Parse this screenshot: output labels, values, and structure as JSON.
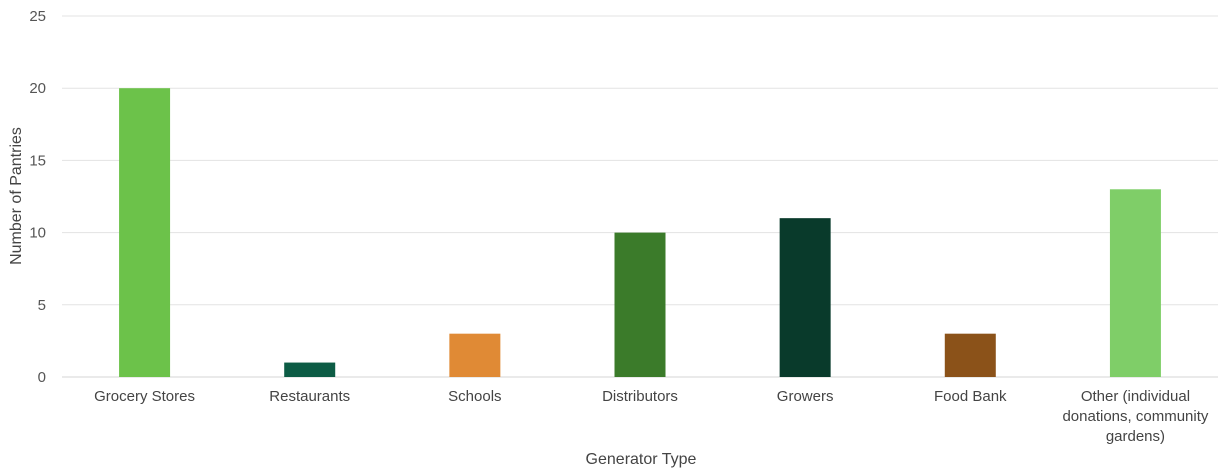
{
  "chart_data": {
    "type": "bar",
    "title": "",
    "xlabel": "Generator Type",
    "ylabel": "Number of Pantries",
    "ylim": [
      0,
      25
    ],
    "yticks": [
      "0",
      "5",
      "10",
      "15",
      "20",
      "25"
    ],
    "grid": true,
    "legend": "none",
    "categories": [
      "Grocery Stores",
      "Restaurants",
      "Schools",
      "Distributors",
      "Growers",
      "Food Bank",
      "Other (individual donations, community gardens)"
    ],
    "category_lines": [
      [
        "Grocery Stores"
      ],
      [
        "Restaurants"
      ],
      [
        "Schools"
      ],
      [
        "Distributors"
      ],
      [
        "Growers"
      ],
      [
        "Food Bank"
      ],
      [
        "Other (individual",
        "donations, community",
        "gardens)"
      ]
    ],
    "values": [
      20,
      1,
      3,
      10,
      11,
      3,
      13
    ],
    "colors": [
      "#6cc24a",
      "#0d5c45",
      "#e08a35",
      "#3b7b2a",
      "#093a2b",
      "#8b5219",
      "#7fce68"
    ]
  }
}
